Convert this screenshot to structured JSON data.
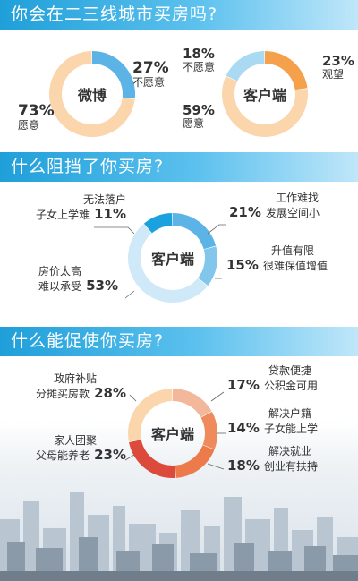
{
  "sections": [
    {
      "title": "你会在二三线城市买房吗?"
    },
    {
      "title": "什么阻挡了你买房?"
    },
    {
      "title": "什么能促使你买房?"
    }
  ],
  "colors": {
    "blue": "#5bb3e6",
    "light_blue": "#a9d9f3",
    "pale_blue": "#cfe9f8",
    "peach": "#fbd6ad",
    "orange": "#f5a04a",
    "deep_orange": "#ee8a5c",
    "red": "#dc4a3c",
    "salmon": "#f3b79b"
  },
  "chart_data": [
    {
      "type": "pie",
      "center_label": "微博",
      "slices": [
        {
          "label": "不愿意",
          "value": 27,
          "pct_text": "27%"
        },
        {
          "label": "愿意",
          "value": 73,
          "pct_text": "73%"
        }
      ]
    },
    {
      "type": "pie",
      "center_label": "客户端",
      "slices": [
        {
          "label": "观望",
          "value": 23,
          "pct_text": "23%"
        },
        {
          "label": "愿意",
          "value": 59,
          "pct_text": "59%"
        },
        {
          "label": "不愿意",
          "value": 18,
          "pct_text": "18%"
        }
      ]
    },
    {
      "type": "pie",
      "center_label": "客户端",
      "slices": [
        {
          "label": "无法落户 子女上学难",
          "line1": "无法落户",
          "line2": "子女上学难",
          "value": 11,
          "pct_text": "11%"
        },
        {
          "label": "工作难找 发展空间小",
          "line1": "工作难找",
          "line2": "发展空间小",
          "value": 21,
          "pct_text": "21%"
        },
        {
          "label": "升值有限 很难保值增值",
          "line1": "升值有限",
          "line2": "很难保值增值",
          "value": 15,
          "pct_text": "15%"
        },
        {
          "label": "房价太高 难以承受",
          "line1": "房价太高",
          "line2": "难以承受",
          "value": 53,
          "pct_text": "53%"
        }
      ]
    },
    {
      "type": "pie",
      "center_label": "客户端",
      "slices": [
        {
          "label": "贷款便捷 公积金可用",
          "line1": "贷款便捷",
          "line2": "公积金可用",
          "value": 17,
          "pct_text": "17%"
        },
        {
          "label": "解决户籍 子女能上学",
          "line1": "解决户籍",
          "line2": "子女能上学",
          "value": 14,
          "pct_text": "14%"
        },
        {
          "label": "解决就业 创业有扶持",
          "line1": "解决就业",
          "line2": "创业有扶持",
          "value": 18,
          "pct_text": "18%"
        },
        {
          "label": "家人团聚 父母能养老",
          "line1": "家人团聚",
          "line2": "父母能养老",
          "value": 23,
          "pct_text": "23%"
        },
        {
          "label": "政府补贴 分摊买房款",
          "line1": "政府补贴",
          "line2": "分摊买房款",
          "value": 28,
          "pct_text": "28%"
        }
      ]
    }
  ]
}
